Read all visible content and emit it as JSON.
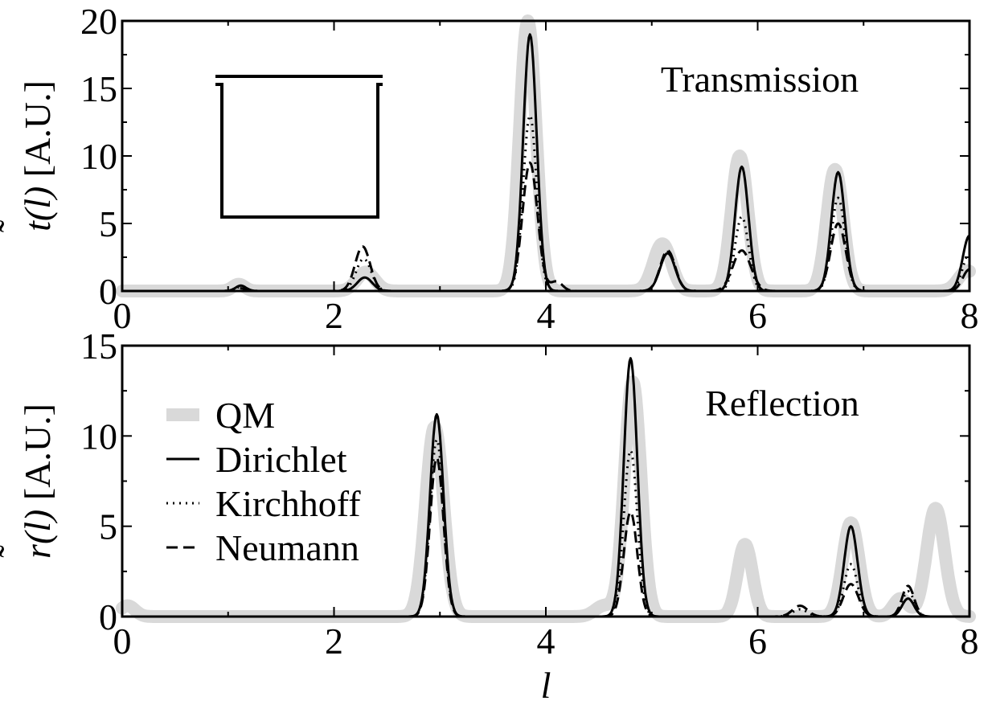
{
  "chart_data": [
    {
      "type": "line",
      "label": "Transmission",
      "ylabel": "t̃(l) [A.U.]",
      "ylabel_tilde": "˜",
      "ylabel_base": "t",
      "ylabel_arg": "(l)",
      "ylabel_unit": " [A.U.]",
      "xlabel": "",
      "xlim": [
        0,
        8
      ],
      "ylim": [
        0,
        20
      ],
      "xticks": [
        "0",
        "2",
        "4",
        "6",
        "8"
      ],
      "yticks": [
        "0",
        "5",
        "10",
        "15",
        "20"
      ],
      "inset": "square-graph-with-leads",
      "series": [
        {
          "name": "QM",
          "peaks": [
            [
              1.1,
              0.5,
              0.08
            ],
            [
              2.3,
              1.4,
              0.12
            ],
            [
              3.83,
              20.0,
              0.11
            ],
            [
              5.1,
              3.5,
              0.12
            ],
            [
              5.83,
              10.0,
              0.11
            ],
            [
              6.73,
              9.0,
              0.11
            ],
            [
              7.98,
              1.5,
              0.12
            ]
          ]
        },
        {
          "name": "Dirichlet",
          "peaks": [
            [
              1.12,
              0.4,
              0.07
            ],
            [
              2.29,
              1.0,
              0.1
            ],
            [
              3.85,
              19.0,
              0.09
            ],
            [
              5.15,
              2.8,
              0.1
            ],
            [
              5.85,
              9.2,
              0.09
            ],
            [
              6.76,
              8.8,
              0.09
            ],
            [
              8.0,
              4.1,
              0.09
            ]
          ]
        },
        {
          "name": "Kirchhoff",
          "peaks": [
            [
              1.12,
              0.3,
              0.07
            ],
            [
              2.28,
              2.4,
              0.1
            ],
            [
              3.85,
              13.0,
              0.09
            ],
            [
              5.15,
              2.9,
              0.1
            ],
            [
              5.85,
              5.5,
              0.09
            ],
            [
              6.76,
              6.9,
              0.09
            ],
            [
              8.0,
              2.8,
              0.09
            ]
          ]
        },
        {
          "name": "Neumann",
          "peaks": [
            [
              1.12,
              0.2,
              0.07
            ],
            [
              2.27,
              3.3,
              0.1
            ],
            [
              3.85,
              9.5,
              0.1
            ],
            [
              4.1,
              0.7,
              0.08
            ],
            [
              5.15,
              3.0,
              0.1
            ],
            [
              5.85,
              3.0,
              0.12
            ],
            [
              6.76,
              5.0,
              0.1
            ],
            [
              8.0,
              1.6,
              0.09
            ]
          ]
        }
      ]
    },
    {
      "type": "line",
      "label": "Reflection",
      "ylabel": "r̃(l) [A.U.]",
      "ylabel_tilde": "˜",
      "ylabel_base": "r",
      "ylabel_arg": "(l)",
      "ylabel_unit": " [A.U.]",
      "xlabel": "l",
      "xlim": [
        0,
        8
      ],
      "ylim": [
        0,
        15
      ],
      "xticks": [
        "0",
        "2",
        "4",
        "6",
        "8"
      ],
      "yticks": [
        "0",
        "5",
        "10",
        "15"
      ],
      "legend": {
        "position": "left",
        "entries": [
          "QM",
          "Dirichlet",
          "Kirchhoff",
          "Neumann"
        ]
      },
      "series": [
        {
          "name": "QM",
          "peaks": [
            [
              0.05,
              0.6,
              0.1
            ],
            [
              2.95,
              10.5,
              0.12
            ],
            [
              4.55,
              0.6,
              0.12
            ],
            [
              4.82,
              13.0,
              0.11
            ],
            [
              5.88,
              4.0,
              0.1
            ],
            [
              6.88,
              5.2,
              0.11
            ],
            [
              7.35,
              1.0,
              0.1
            ],
            [
              7.68,
              6.0,
              0.12
            ]
          ]
        },
        {
          "name": "Dirichlet",
          "peaks": [
            [
              2.97,
              11.2,
              0.09
            ],
            [
              4.8,
              14.3,
              0.09
            ],
            [
              6.88,
              5.0,
              0.09
            ],
            [
              7.42,
              1.0,
              0.08
            ]
          ]
        },
        {
          "name": "Kirchhoff",
          "peaks": [
            [
              2.97,
              9.8,
              0.09
            ],
            [
              4.8,
              9.2,
              0.09
            ],
            [
              6.4,
              0.4,
              0.1
            ],
            [
              6.88,
              2.9,
              0.09
            ],
            [
              7.42,
              1.4,
              0.08
            ]
          ]
        },
        {
          "name": "Neumann",
          "peaks": [
            [
              2.97,
              8.8,
              0.09
            ],
            [
              4.8,
              5.8,
              0.09
            ],
            [
              6.4,
              0.6,
              0.1
            ],
            [
              6.88,
              1.8,
              0.1
            ],
            [
              7.42,
              1.7,
              0.08
            ]
          ]
        }
      ]
    }
  ]
}
